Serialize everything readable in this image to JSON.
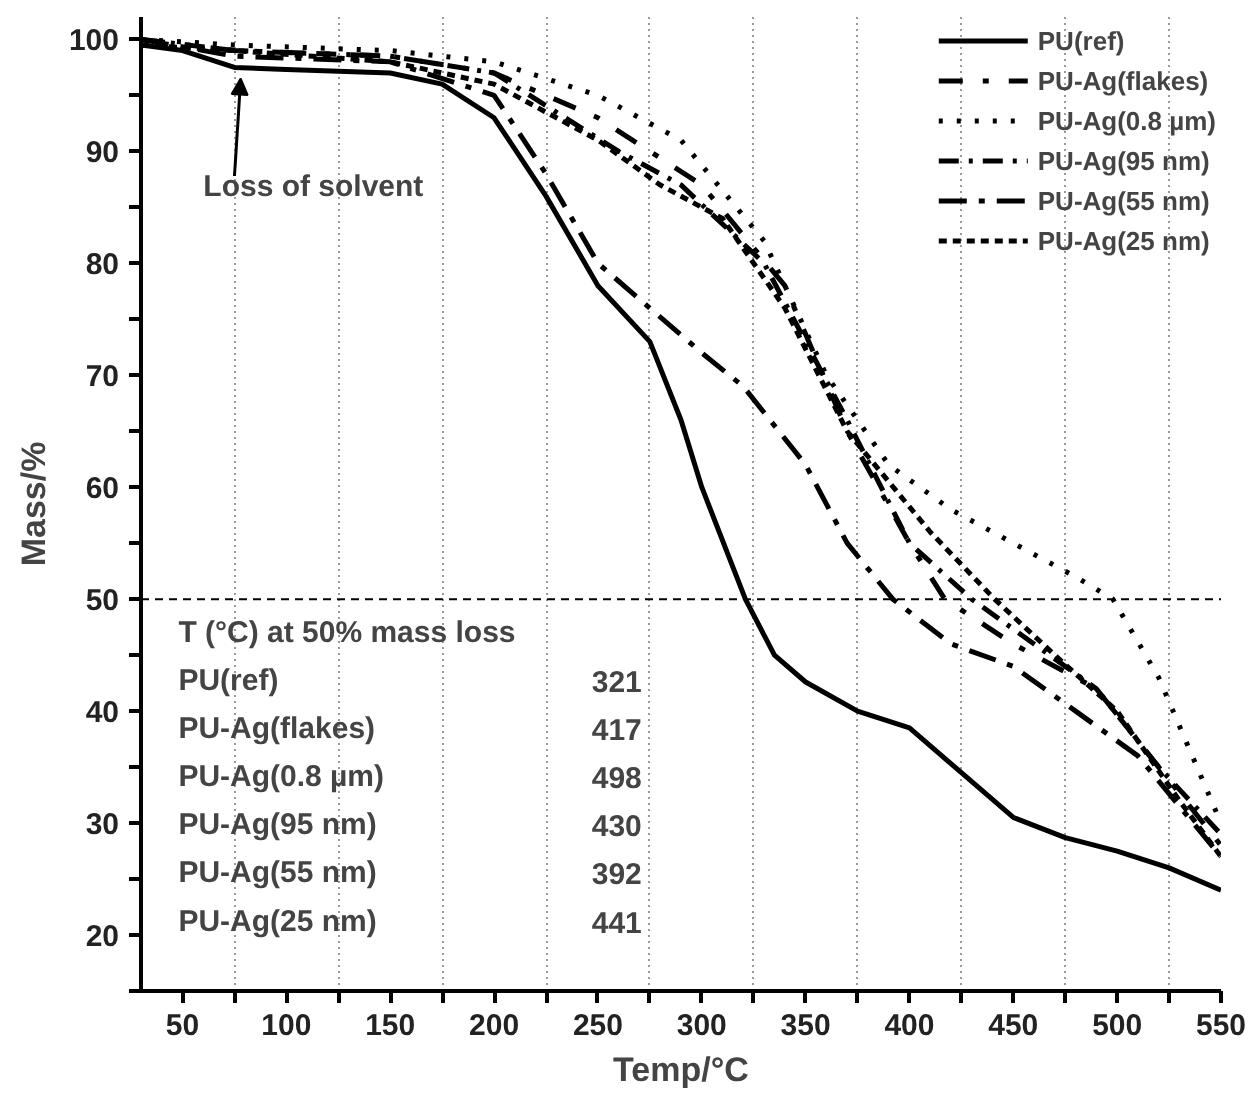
{
  "chart_data": {
    "type": "line",
    "xlabel": "Temp/°C",
    "ylabel": "Mass/%",
    "xlim": [
      30,
      550
    ],
    "ylim": [
      15,
      102
    ],
    "xticks": [
      50,
      {
        "value": 75,
        "label": null
      },
      100,
      {
        "value": 125,
        "label": null
      },
      150,
      {
        "value": 175,
        "label": null
      },
      200,
      {
        "value": 225,
        "label": null
      },
      250,
      {
        "value": 275,
        "label": null
      },
      300,
      {
        "value": 325,
        "label": null
      },
      350,
      {
        "value": 375,
        "label": null
      },
      400,
      {
        "value": 425,
        "label": null
      },
      450,
      {
        "value": 475,
        "label": null
      },
      500,
      {
        "value": 525,
        "label": null
      },
      550
    ],
    "yticks": [
      {
        "value": 15,
        "label": null
      },
      20,
      {
        "value": 25,
        "label": null
      },
      30,
      {
        "value": 35,
        "label": null
      },
      40,
      {
        "value": 45,
        "label": null
      },
      50,
      {
        "value": 55,
        "label": null
      },
      60,
      {
        "value": 65,
        "label": null
      },
      70,
      {
        "value": 75,
        "label": null
      },
      80,
      {
        "value": 85,
        "label": null
      },
      90,
      {
        "value": 95,
        "label": null
      },
      100
    ],
    "grid": "x",
    "legend": "top right",
    "marker": "none",
    "series": [
      {
        "name": "PU(ref)",
        "color": "#000000",
        "line_style": "solid",
        "x": [
          30,
          50,
          75,
          100,
          150,
          175,
          200,
          225,
          250,
          275,
          290,
          300,
          321,
          335,
          350,
          375,
          400,
          425,
          450,
          475,
          500,
          525,
          550
        ],
        "values": [
          99.5,
          99,
          97.5,
          97.3,
          97,
          96,
          93,
          86,
          78,
          73,
          66,
          60,
          50,
          45,
          42.6,
          40,
          38.5,
          34.5,
          30.5,
          28.7,
          27.5,
          26,
          24
        ]
      },
      {
        "name": "PU-Ag(flakes)",
        "color": "#000000",
        "line_style": "longdash",
        "x": [
          30,
          75,
          150,
          200,
          250,
          300,
          340,
          370,
          400,
          417,
          450,
          490,
          520,
          550
        ],
        "values": [
          100,
          99,
          98.5,
          97,
          93,
          87,
          78,
          65,
          55,
          50,
          46,
          42,
          35,
          28
        ]
      },
      {
        "name": "PU-Ag(0.8 µm)",
        "color": "#000000",
        "line_style": "dotted",
        "x": [
          30,
          75,
          150,
          200,
          250,
          290,
          330,
          360,
          390,
          420,
          450,
          480,
          498,
          520,
          550
        ],
        "values": [
          100,
          99.5,
          99,
          98,
          95,
          91,
          82,
          70,
          62,
          58,
          55,
          52,
          50,
          43,
          30
        ]
      },
      {
        "name": "PU-Ag(95 nm)",
        "color": "#000000",
        "line_style": "dashdot",
        "x": [
          30,
          75,
          150,
          200,
          260,
          290,
          330,
          370,
          400,
          430,
          460,
          490,
          520,
          550
        ],
        "values": [
          100,
          99,
          98.5,
          97,
          90,
          87,
          80,
          66,
          55,
          50,
          46,
          42,
          35,
          29
        ]
      },
      {
        "name": "PU-Ag(55 nm)",
        "color": "#000000",
        "line_style": "longdashdot",
        "x": [
          30,
          75,
          150,
          200,
          225,
          250,
          275,
          300,
          320,
          350,
          370,
          392,
          420,
          450,
          480,
          510,
          550
        ],
        "values": [
          100,
          98.5,
          98,
          95,
          88,
          80,
          76,
          72,
          69,
          62,
          55,
          50,
          46,
          44,
          40,
          36,
          27
        ]
      },
      {
        "name": "PU-Ag(25 nm)",
        "color": "#000000",
        "line_style": "dashed",
        "x": [
          30,
          75,
          150,
          200,
          250,
          280,
          310,
          340,
          370,
          410,
          441,
          470,
          500,
          530,
          550
        ],
        "values": [
          99.5,
          99,
          98,
          96,
          91,
          87,
          84,
          76,
          65,
          56,
          50,
          45,
          40,
          32,
          27
        ]
      }
    ],
    "ref_lines": [
      {
        "axis": "y",
        "value": 50,
        "line_style": "dashed",
        "color": "#000000"
      }
    ],
    "annotations": [
      {
        "text": "Loss of solvent",
        "x": 78,
        "y": 97.3
      },
      "T (°C) at 50% mass loss",
      "PU(ref)",
      "321",
      "PU-Ag(flakes)",
      "417",
      "PU-Ag(0.8 µm)",
      "498",
      "PU-Ag(95 nm)",
      "430",
      "PU-Ag(55 nm)",
      "392",
      "PU-Ag(25 nm)",
      "441"
    ]
  }
}
